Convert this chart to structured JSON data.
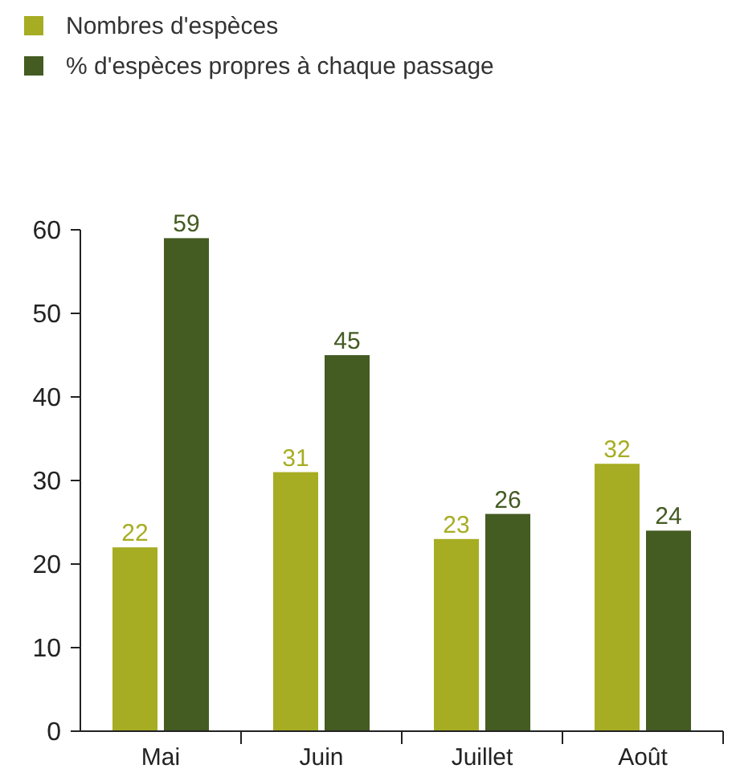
{
  "chart_data": {
    "type": "bar",
    "categories": [
      "Mai",
      "Juin",
      "Juillet",
      "Août"
    ],
    "series": [
      {
        "name": "Nombres d'espèces",
        "color": "#a6ad23",
        "values": [
          22,
          31,
          23,
          32
        ]
      },
      {
        "name": "% d'espèces propres à chaque passage",
        "color": "#445b22",
        "values": [
          59,
          45,
          26,
          24
        ]
      }
    ],
    "ylim": [
      0,
      60
    ],
    "yticks": [
      0,
      10,
      20,
      30,
      40,
      50,
      60
    ],
    "data_labels": true,
    "legend": "top left",
    "grid": false
  }
}
